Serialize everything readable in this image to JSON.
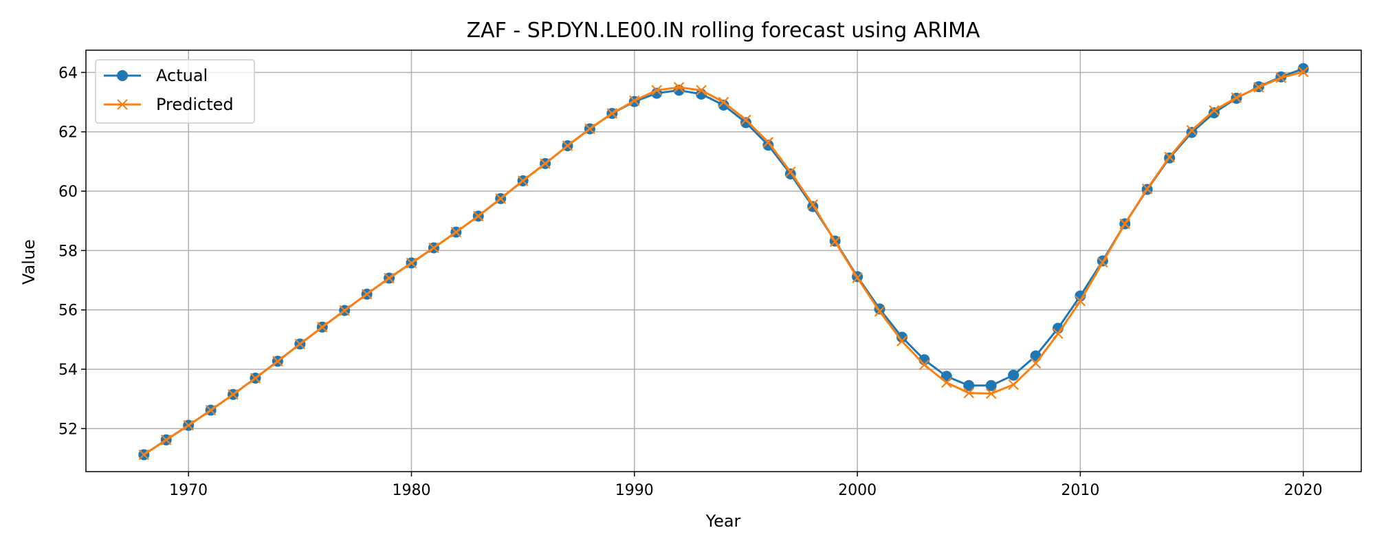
{
  "chart_data": {
    "type": "line",
    "title": "ZAF - SP.DYN.LE00.IN rolling forecast using ARIMA",
    "xlabel": "Year",
    "ylabel": "Value",
    "xlim": [
      1965.4,
      2022.6
    ],
    "ylim": [
      50.55,
      64.75
    ],
    "xticks": [
      1970,
      1980,
      1990,
      2000,
      2010,
      2020
    ],
    "yticks": [
      52,
      54,
      56,
      58,
      60,
      62,
      64
    ],
    "grid": true,
    "legend_position": "top-left",
    "x": [
      1968,
      1969,
      1970,
      1971,
      1972,
      1973,
      1974,
      1975,
      1976,
      1977,
      1978,
      1979,
      1980,
      1981,
      1982,
      1983,
      1984,
      1985,
      1986,
      1987,
      1988,
      1989,
      1990,
      1991,
      1992,
      1993,
      1994,
      1995,
      1996,
      1997,
      1998,
      1999,
      2000,
      2001,
      2002,
      2003,
      2004,
      2005,
      2006,
      2007,
      2008,
      2009,
      2010,
      2011,
      2012,
      2013,
      2014,
      2015,
      2016,
      2017,
      2018,
      2019,
      2020
    ],
    "series": [
      {
        "name": "Actual",
        "color": "#1f77b4",
        "marker": "circle",
        "values": [
          51.12,
          51.62,
          52.11,
          52.62,
          53.15,
          53.7,
          54.27,
          54.85,
          55.42,
          55.98,
          56.53,
          57.07,
          57.58,
          58.09,
          58.62,
          59.16,
          59.75,
          60.35,
          60.93,
          61.53,
          62.1,
          62.62,
          63.02,
          63.3,
          63.4,
          63.27,
          62.9,
          62.31,
          61.55,
          60.58,
          59.48,
          58.32,
          57.12,
          56.03,
          55.08,
          54.32,
          53.76,
          53.45,
          53.45,
          53.8,
          54.45,
          55.38,
          56.47,
          57.65,
          58.9,
          60.06,
          61.12,
          61.98,
          62.64,
          63.13,
          63.52,
          63.85,
          64.13
        ]
      },
      {
        "name": "Predicted",
        "color": "#ff7f0e",
        "marker": "x",
        "values": [
          51.12,
          51.62,
          52.11,
          52.62,
          53.15,
          53.7,
          54.27,
          54.85,
          55.42,
          55.98,
          56.53,
          57.07,
          57.58,
          58.09,
          58.62,
          59.16,
          59.75,
          60.35,
          60.93,
          61.53,
          62.1,
          62.62,
          63.05,
          63.4,
          63.5,
          63.4,
          63.0,
          62.4,
          61.65,
          60.65,
          59.55,
          58.3,
          57.08,
          55.95,
          54.95,
          54.15,
          53.55,
          53.2,
          53.18,
          53.48,
          54.2,
          55.2,
          56.3,
          57.6,
          58.9,
          60.08,
          61.15,
          62.05,
          62.72,
          63.15,
          63.5,
          63.82,
          64.02
        ]
      }
    ]
  }
}
